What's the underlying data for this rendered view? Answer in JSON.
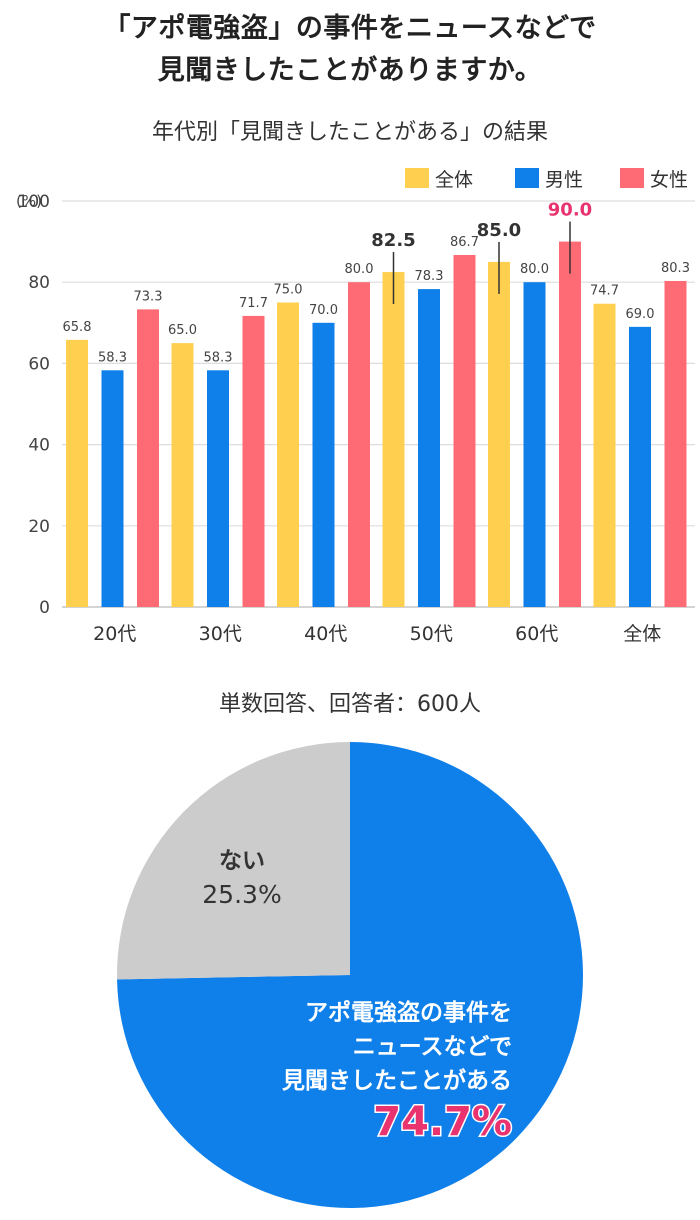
{
  "title_line1": "「アポ電強盗」の事件をニュースなどで",
  "title_line2": "見聞きしたことがありますか。",
  "bar_subtitle": "年代別「見聞きしたことがある」の結果",
  "pie_subtitle": "単数回答、回答者：600人",
  "chart_data": [
    {
      "type": "bar",
      "ylabel": "(%)",
      "ylim": [
        0,
        100
      ],
      "yticks": [
        0,
        20,
        40,
        60,
        80,
        100
      ],
      "grid": true,
      "legend_position": "top-right",
      "categories": [
        "20代",
        "30代",
        "40代",
        "50代",
        "60代",
        "全体"
      ],
      "series": [
        {
          "name": "全体",
          "color": "#FFD04F",
          "values": [
            65.8,
            65.0,
            75.0,
            82.5,
            85.0,
            74.7
          ]
        },
        {
          "name": "男性",
          "color": "#0F7FEA",
          "values": [
            58.3,
            58.3,
            70.0,
            78.3,
            80.0,
            69.0
          ]
        },
        {
          "name": "女性",
          "color": "#FF6B74",
          "values": [
            73.3,
            71.7,
            80.0,
            86.7,
            90.0,
            80.3
          ]
        }
      ],
      "highlights": [
        {
          "series": 0,
          "category": 3,
          "label": "82.5",
          "color": "#333333"
        },
        {
          "series": 0,
          "category": 4,
          "label": "85.0",
          "color": "#333333"
        },
        {
          "series": 2,
          "category": 4,
          "label": "90.0",
          "color": "#E8336F"
        }
      ]
    },
    {
      "type": "pie",
      "slices": [
        {
          "label": "アポ電強盗の事件を\nニュースなどで\n見聞きしたことがある",
          "value": 74.7,
          "display": "74.7%",
          "color": "#0F7FEA"
        },
        {
          "label": "ない",
          "value": 25.3,
          "display": "25.3%",
          "color": "#CCCCCC"
        }
      ]
    }
  ]
}
